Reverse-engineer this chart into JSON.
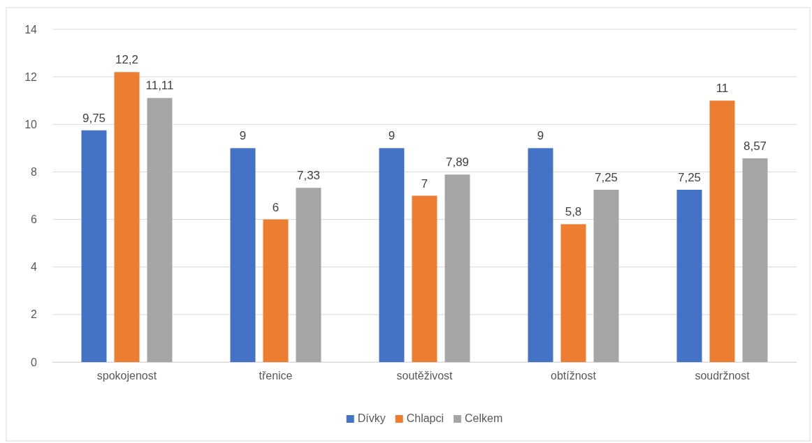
{
  "chart_data": {
    "type": "bar",
    "categories": [
      "spokojenost",
      "třenice",
      "soutěživost",
      "obtížnost",
      "soudržnost"
    ],
    "series": [
      {
        "name": "Dívky",
        "color": "#4472c4",
        "values": [
          9.75,
          9,
          9,
          9,
          7.25
        ],
        "value_labels": [
          "9,75",
          "9",
          "9",
          "9",
          "7,25"
        ]
      },
      {
        "name": "Chlapci",
        "color": "#ed7d31",
        "values": [
          12.2,
          6,
          7,
          5.8,
          11
        ],
        "value_labels": [
          "12,2",
          "6",
          "7",
          "5,8",
          "11"
        ]
      },
      {
        "name": "Celkem",
        "color": "#a5a5a5",
        "values": [
          11.11,
          7.33,
          7.89,
          7.25,
          8.57
        ],
        "value_labels": [
          "11,11",
          "7,33",
          "7,89",
          "7,25",
          "8,57"
        ]
      }
    ],
    "ylim": [
      0,
      14
    ],
    "yticks": [
      0,
      2,
      4,
      6,
      8,
      10,
      12,
      14
    ],
    "grid": "y",
    "legend": "bottom"
  }
}
